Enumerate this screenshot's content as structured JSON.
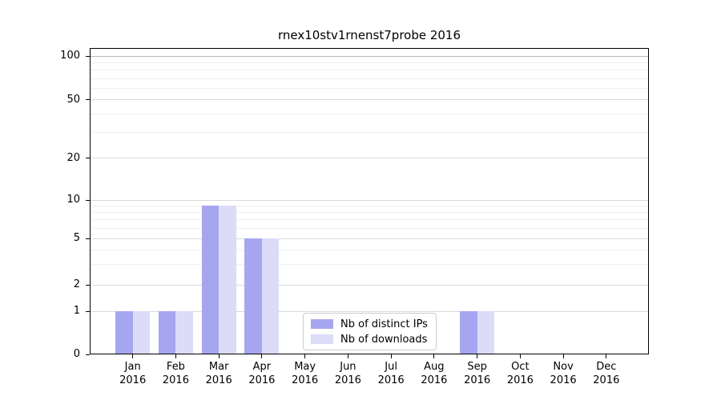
{
  "chart_data": {
    "type": "bar",
    "title": "rnex10stv1rnenst7probe 2016",
    "categories": [
      "Jan 2016",
      "Feb 2016",
      "Mar 2016",
      "Apr 2016",
      "May 2016",
      "Jun 2016",
      "Jul 2016",
      "Aug 2016",
      "Sep 2016",
      "Oct 2016",
      "Nov 2016",
      "Dec 2016"
    ],
    "series": [
      {
        "name": "Nb of distinct IPs",
        "color": "#a6a6f0",
        "values": [
          1,
          1,
          9,
          5,
          0,
          0,
          0,
          0,
          1,
          0,
          0,
          0
        ]
      },
      {
        "name": "Nb of downloads",
        "color": "#dcdcf9",
        "values": [
          1,
          1,
          9,
          5,
          0,
          0,
          0,
          0,
          1,
          0,
          0,
          0
        ]
      }
    ],
    "xlabel": "",
    "ylabel": "",
    "yticks": [
      0,
      1,
      2,
      5,
      10,
      20,
      50,
      100
    ],
    "ylim": [
      0,
      114
    ],
    "yscale": "log-like",
    "grid": true,
    "legend_position": "lower center"
  },
  "colors": {
    "axis": "#000000",
    "grid_major": "#d9d9d9",
    "grid_minor": "#f0f0f0",
    "grid_top": "#b8b8b8",
    "background": "#ffffff"
  }
}
